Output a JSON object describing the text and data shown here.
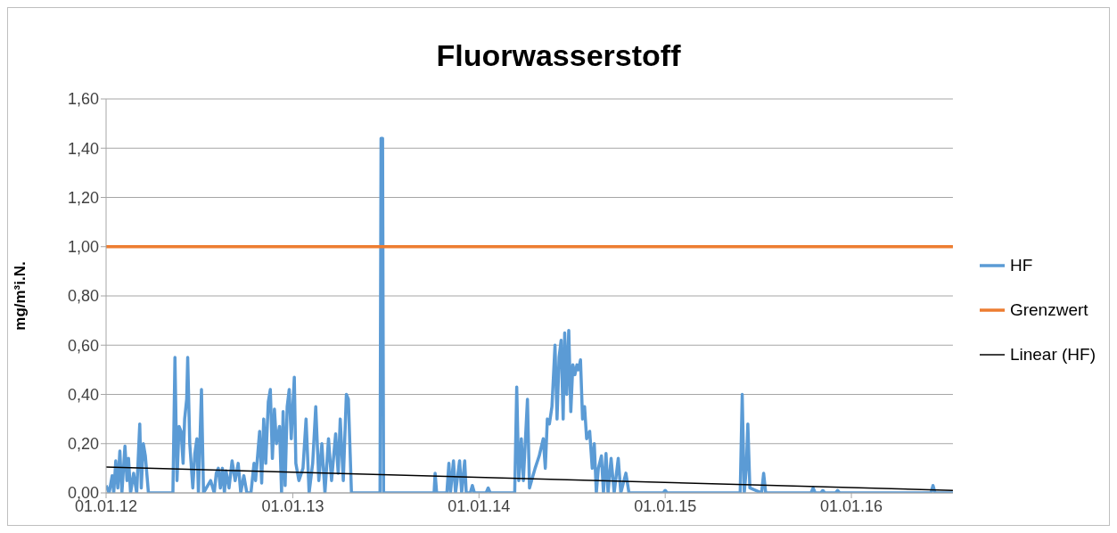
{
  "chart_data": {
    "type": "line",
    "title": "Fluorwasserstoff",
    "ylabel": "mg/m³i.N.",
    "xlim": [
      "2012-01-01",
      "2016-07-18"
    ],
    "xticks": [
      {
        "value": "2012-01-01",
        "label": "01.01.12"
      },
      {
        "value": "2013-01-01",
        "label": "01.01.13"
      },
      {
        "value": "2014-01-01",
        "label": "01.01.14"
      },
      {
        "value": "2015-01-01",
        "label": "01.01.15"
      },
      {
        "value": "2016-01-01",
        "label": "01.01.16"
      }
    ],
    "ylim": [
      0,
      1.6
    ],
    "yticks": [
      {
        "value": 0,
        "label": "0,00"
      },
      {
        "value": 0.2,
        "label": "0,20"
      },
      {
        "value": 0.4,
        "label": "0,40"
      },
      {
        "value": 0.6,
        "label": "0,60"
      },
      {
        "value": 0.8,
        "label": "0,80"
      },
      {
        "value": 1,
        "label": "1,00"
      },
      {
        "value": 1.2,
        "label": "1,20"
      },
      {
        "value": 1.4,
        "label": "1,40"
      },
      {
        "value": 1.6,
        "label": "1,60"
      }
    ],
    "grid": "y",
    "legend": "right",
    "marker": "none",
    "line_style": "solid",
    "series": [
      {
        "name": "HF",
        "color": "#5b9bd5",
        "x": [
          "2012-01-01",
          "2012-01-07",
          "2012-01-13",
          "2012-01-16",
          "2012-01-20",
          "2012-01-24",
          "2012-01-28",
          "2012-02-01",
          "2012-02-07",
          "2012-02-11",
          "2012-02-14",
          "2012-02-18",
          "2012-02-24",
          "2012-03-01",
          "2012-03-07",
          "2012-03-10",
          "2012-03-14",
          "2012-03-18",
          "2012-03-24",
          "2012-05-11",
          "2012-05-15",
          "2012-05-19",
          "2012-05-23",
          "2012-05-27",
          "2012-05-31",
          "2012-06-03",
          "2012-06-07",
          "2012-06-09",
          "2012-06-13",
          "2012-06-19",
          "2012-06-23",
          "2012-06-27",
          "2012-06-30",
          "2012-07-06",
          "2012-07-10",
          "2012-07-24",
          "2012-07-31",
          "2012-08-04",
          "2012-08-08",
          "2012-08-12",
          "2012-08-16",
          "2012-08-20",
          "2012-08-23",
          "2012-08-29",
          "2012-09-04",
          "2012-09-10",
          "2012-09-16",
          "2012-09-21",
          "2012-09-27",
          "2012-10-03",
          "2012-10-11",
          "2012-10-17",
          "2012-10-20",
          "2012-10-28",
          "2012-11-01",
          "2012-11-05",
          "2012-11-09",
          "2012-11-14",
          "2012-11-18",
          "2012-11-22",
          "2012-11-26",
          "2012-11-30",
          "2012-12-06",
          "2012-12-10",
          "2012-12-13",
          "2012-12-17",
          "2012-12-21",
          "2012-12-25",
          "2012-12-29",
          "2013-01-04",
          "2013-01-07",
          "2013-01-13",
          "2013-01-21",
          "2013-01-27",
          "2013-02-02",
          "2013-02-09",
          "2013-02-15",
          "2013-02-21",
          "2013-02-27",
          "2013-03-05",
          "2013-03-12",
          "2013-03-18",
          "2013-03-26",
          "2013-03-31",
          "2013-04-04",
          "2013-04-10",
          "2013-04-16",
          "2013-04-20",
          "2013-04-26",
          "2013-06-21",
          "2013-06-23",
          "2013-06-26",
          "2013-06-28",
          "2013-10-05",
          "2013-10-07",
          "2013-10-10",
          "2013-10-30",
          "2013-11-03",
          "2013-11-06",
          "2013-11-12",
          "2013-11-16",
          "2013-11-24",
          "2013-11-28",
          "2013-12-04",
          "2013-12-07",
          "2013-12-15",
          "2013-12-19",
          "2013-12-23",
          "2014-01-15",
          "2014-01-19",
          "2014-01-23",
          "2014-03-12",
          "2014-03-16",
          "2014-03-20",
          "2014-03-25",
          "2014-03-29",
          "2014-04-06",
          "2014-04-10",
          "2014-04-21",
          "2014-04-29",
          "2014-05-07",
          "2014-05-11",
          "2014-05-15",
          "2014-05-19",
          "2014-05-24",
          "2014-05-30",
          "2014-06-03",
          "2014-06-07",
          "2014-06-11",
          "2014-06-15",
          "2014-06-18",
          "2014-06-22",
          "2014-06-26",
          "2014-06-30",
          "2014-07-04",
          "2014-07-08",
          "2014-07-12",
          "2014-07-15",
          "2014-07-19",
          "2014-07-23",
          "2014-07-27",
          "2014-07-31",
          "2014-08-06",
          "2014-08-11",
          "2014-08-15",
          "2014-08-19",
          "2014-08-23",
          "2014-08-29",
          "2014-09-02",
          "2014-09-07",
          "2014-09-11",
          "2014-09-17",
          "2014-09-23",
          "2014-10-01",
          "2014-10-06",
          "2014-10-16",
          "2014-10-22",
          "2014-12-28",
          "2015-01-01",
          "2015-01-05",
          "2015-05-28",
          "2015-06-01",
          "2015-06-05",
          "2015-06-09",
          "2015-06-12",
          "2015-06-16",
          "2015-07-09",
          "2015-07-13",
          "2015-07-17",
          "2015-10-14",
          "2015-10-18",
          "2015-10-22",
          "2015-11-02",
          "2015-11-06",
          "2015-11-10",
          "2015-12-01",
          "2015-12-05",
          "2015-12-09",
          "2016-06-05",
          "2016-06-09",
          "2016-06-13",
          "2016-07-18"
        ],
        "values": [
          0.03,
          0,
          0.07,
          0,
          0.13,
          0.02,
          0.17,
          0,
          0.19,
          0.05,
          0.14,
          0,
          0.08,
          0,
          0.28,
          0.02,
          0.2,
          0.15,
          0,
          0,
          0.55,
          0.05,
          0.27,
          0.25,
          0.12,
          0.3,
          0.38,
          0.55,
          0.2,
          0.02,
          0.16,
          0.22,
          0,
          0.42,
          0,
          0.05,
          0,
          0.08,
          0.1,
          0.02,
          0.1,
          0,
          0.09,
          0.02,
          0.13,
          0.05,
          0.12,
          0,
          0.07,
          0,
          0,
          0.12,
          0.05,
          0.25,
          0.04,
          0.3,
          0.12,
          0.37,
          0.42,
          0.14,
          0.34,
          0.2,
          0.27,
          0,
          0.33,
          0.03,
          0.35,
          0.42,
          0.22,
          0.47,
          0.12,
          0.05,
          0.1,
          0.3,
          0,
          0.12,
          0.35,
          0.05,
          0.2,
          0,
          0.22,
          0.05,
          0.24,
          0.08,
          0.3,
          0.05,
          0.4,
          0.38,
          0,
          0,
          1.44,
          1.44,
          0,
          0,
          0.08,
          0,
          0,
          0.12,
          0,
          0.13,
          0,
          0.13,
          0,
          0.13,
          0,
          0,
          0.03,
          0,
          0,
          0.02,
          0,
          0,
          0.43,
          0.05,
          0.22,
          0.05,
          0.38,
          0.02,
          0.1,
          0.15,
          0.22,
          0.1,
          0.3,
          0.28,
          0.35,
          0.6,
          0.3,
          0.55,
          0.62,
          0.3,
          0.65,
          0.4,
          0.66,
          0.33,
          0.52,
          0.48,
          0.52,
          0.5,
          0.54,
          0.3,
          0.35,
          0.22,
          0.25,
          0.1,
          0.2,
          0,
          0.1,
          0.15,
          0,
          0.16,
          0,
          0.14,
          0,
          0.14,
          0,
          0.08,
          0,
          0,
          0.01,
          0,
          0,
          0.4,
          0,
          0.1,
          0.28,
          0.02,
          0,
          0.08,
          0,
          0,
          0.02,
          0,
          0,
          0.01,
          0,
          0,
          0.01,
          0,
          0,
          0.03,
          0,
          0
        ]
      },
      {
        "name": "Grenzwert",
        "color": "#ed7d31",
        "x": [
          "2012-01-01",
          "2016-07-18"
        ],
        "values": [
          1,
          1
        ]
      },
      {
        "name": "Linear (HF)",
        "color": "#000000",
        "x": [
          "2012-01-01",
          "2016-07-18"
        ],
        "values": [
          0.105,
          0.01
        ]
      }
    ]
  }
}
